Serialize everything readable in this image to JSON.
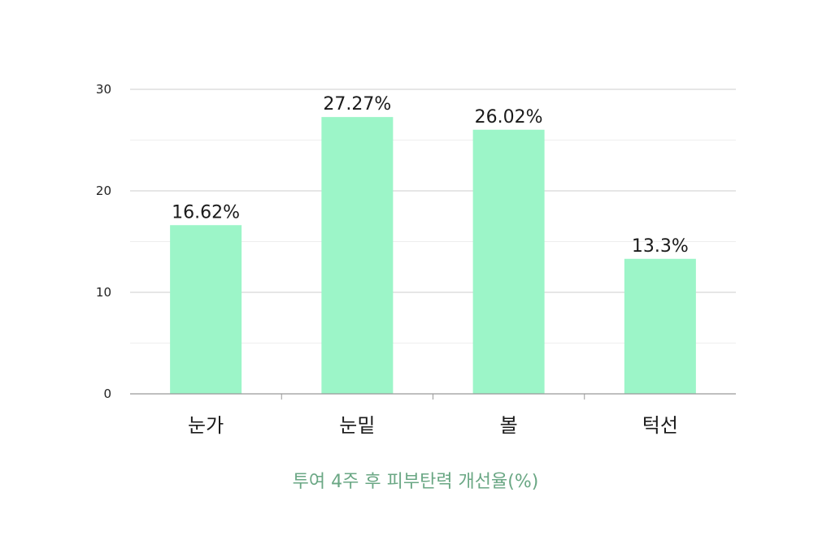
{
  "chart_data": {
    "type": "bar",
    "categories": [
      "눈가",
      "눈밑",
      "볼",
      "턱선"
    ],
    "values": [
      16.62,
      27.27,
      26.02,
      13.3
    ],
    "data_labels": [
      "16.62%",
      "27.27%",
      "26.02%",
      "13.3%"
    ],
    "title": "",
    "xlabel": "투여 4주 후 피부탄력 개선율(%)",
    "ylabel": "",
    "ylim": [
      0,
      30
    ],
    "yticks": [
      0,
      10,
      20,
      30
    ],
    "grid": true,
    "legend": "none",
    "colors": {
      "bar": "#9cf5c8",
      "caption": "#6aa784",
      "grid_major": "#cccccc",
      "grid_minor": "#eeeeee",
      "axis": "#999999"
    }
  }
}
